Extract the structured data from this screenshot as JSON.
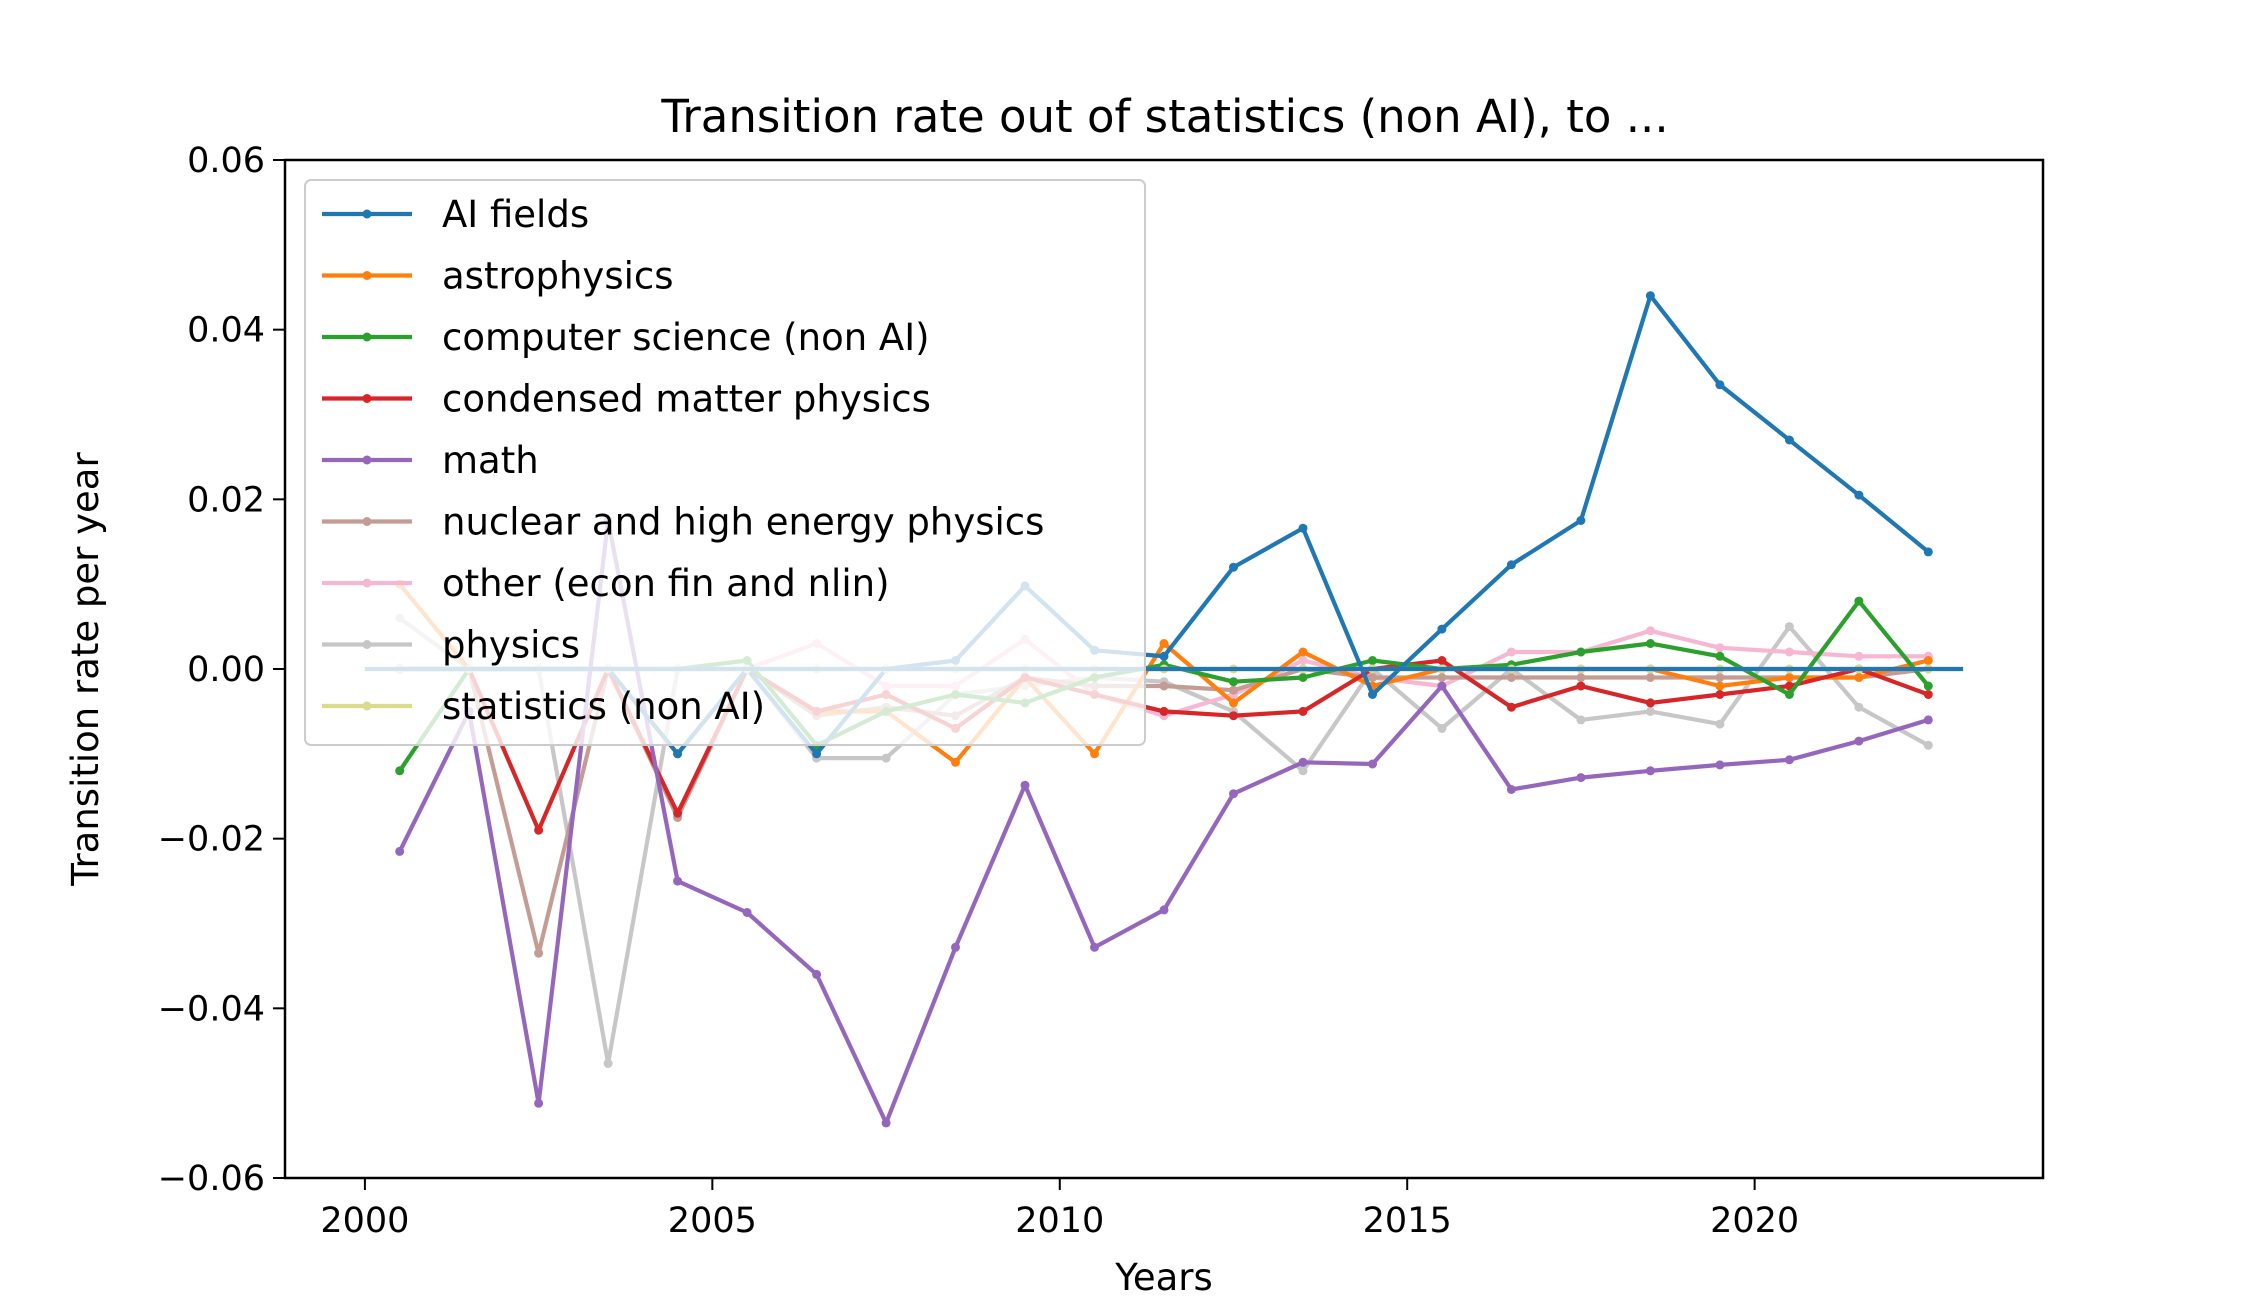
{
  "chart_data": {
    "type": "line",
    "title": "Transition rate out of statistics (non AI), to ...",
    "xlabel": "Years",
    "ylabel": "Transition rate per year",
    "xlim": [
      1998.85,
      2024.15
    ],
    "ylim": [
      -0.06,
      0.06
    ],
    "xticks": [
      "2000",
      "2005",
      "2010",
      "2015",
      "2020"
    ],
    "yticks": [
      "0.06",
      "0.04",
      "0.02",
      "0.00",
      "−0.02",
      "−0.04",
      "−0.06"
    ],
    "legend_position": "upper-left",
    "grid": false,
    "x": [
      2000.5,
      2001.5,
      2002.5,
      2003.5,
      2004.5,
      2005.5,
      2006.5,
      2007.5,
      2008.5,
      2009.5,
      2010.5,
      2011.5,
      2012.5,
      2013.5,
      2014.5,
      2015.5,
      2016.5,
      2017.5,
      2018.5,
      2019.5,
      2020.5,
      2021.5,
      2022.5
    ],
    "series": [
      {
        "name": "AI fields",
        "color": "#1f77b4",
        "values": [
          0.0,
          0.0,
          0.0,
          0.0,
          -0.01,
          0.0,
          -0.01,
          0.0,
          0.001,
          0.0098,
          0.0022,
          0.0015,
          0.012,
          0.0166,
          -0.003,
          0.0047,
          0.0123,
          0.0175,
          0.044,
          0.0335,
          0.027,
          0.0205,
          0.0138
        ]
      },
      {
        "name": "astrophysics",
        "color": "#ff7f0e",
        "values": [
          0.01,
          0.0,
          0.0,
          0.0,
          -0.01,
          0.0,
          -0.005,
          -0.005,
          -0.011,
          -0.001,
          -0.01,
          0.003,
          -0.004,
          0.002,
          -0.002,
          0.0,
          0.0,
          0.0,
          0.0,
          -0.002,
          -0.001,
          -0.001,
          0.001
        ]
      },
      {
        "name": "computer science (non AI)",
        "color": "#2ca02c",
        "values": [
          -0.012,
          0.0,
          0.0,
          0.0,
          0.0,
          0.001,
          -0.009,
          -0.005,
          -0.003,
          -0.004,
          -0.001,
          0.0005,
          -0.0015,
          -0.001,
          0.001,
          0.0,
          0.0005,
          0.002,
          0.003,
          0.0015,
          -0.003,
          0.008,
          -0.002
        ]
      },
      {
        "name": "condensed matter physics",
        "color": "#d62728",
        "values": [
          0.0,
          0.0,
          -0.019,
          0.0,
          -0.017,
          0.0,
          -0.005,
          -0.003,
          -0.007,
          -0.001,
          -0.003,
          -0.005,
          -0.0055,
          -0.005,
          0.0,
          0.001,
          -0.0045,
          -0.002,
          -0.004,
          -0.003,
          -0.002,
          0.0,
          -0.003
        ]
      },
      {
        "name": "math",
        "color": "#9467bd",
        "values": [
          -0.0215,
          -0.005,
          -0.0512,
          0.0175,
          -0.025,
          -0.0287,
          -0.036,
          -0.0535,
          -0.0328,
          -0.0137,
          -0.0328,
          -0.0284,
          -0.0147,
          -0.011,
          -0.0112,
          -0.002,
          -0.0142,
          -0.0128,
          -0.012,
          -0.0113,
          -0.0107,
          -0.0085,
          -0.006
        ]
      },
      {
        "name": "nuclear and high energy physics",
        "color": "#c49c94",
        "values": [
          0.0,
          0.0,
          -0.0335,
          0.0,
          -0.0175,
          0.0,
          -0.0055,
          -0.0045,
          -0.0055,
          -0.001,
          -0.002,
          -0.002,
          -0.0025,
          0.0,
          -0.001,
          -0.001,
          -0.001,
          -0.001,
          -0.001,
          -0.001,
          -0.001,
          -0.001,
          0.0
        ]
      },
      {
        "name": "other (econ fin and nlin)",
        "color": "#f7b6d2",
        "values": [
          0.0,
          0.0,
          0.0,
          0.0,
          0.0,
          0.0,
          0.003,
          -0.002,
          -0.002,
          0.0035,
          -0.003,
          -0.0055,
          -0.003,
          0.001,
          -0.001,
          -0.002,
          0.002,
          0.002,
          0.0045,
          0.0025,
          0.002,
          0.0015,
          0.0015
        ]
      },
      {
        "name": "physics",
        "color": "#c7c7c7",
        "values": [
          0.006,
          0.0,
          0.0,
          -0.0465,
          0.0,
          0.0,
          -0.0105,
          -0.0105,
          -0.003,
          -0.002,
          -0.001,
          -0.0015,
          -0.005,
          -0.012,
          0.0,
          -0.007,
          0.0,
          -0.006,
          -0.005,
          -0.0065,
          0.005,
          -0.0045,
          -0.009
        ]
      },
      {
        "name": "statistics (non AI)",
        "color": "#dbdb8d",
        "values": [
          0.0,
          0.0,
          0.0,
          0.0,
          0.0,
          0.0,
          0.0,
          0.0,
          0.0,
          0.0,
          0.0,
          0.0,
          0.0,
          0.0,
          0.0,
          0.0,
          0.0,
          0.0,
          0.0,
          0.0,
          0.0,
          0.0,
          0.0
        ]
      }
    ]
  }
}
